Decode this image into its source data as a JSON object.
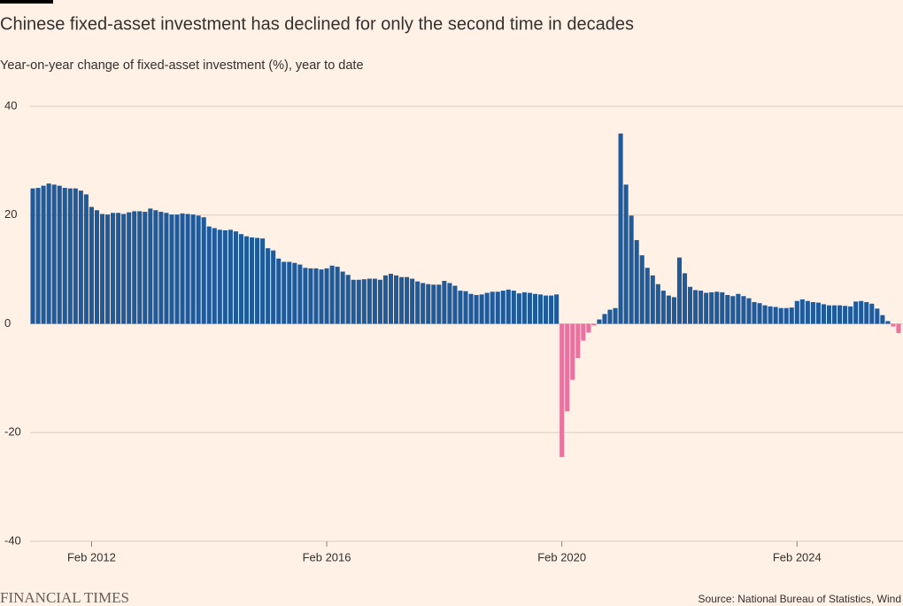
{
  "chart_data": {
    "type": "bar",
    "title": "Chinese fixed-asset investment has declined for only the second time in decades",
    "subtitle": "Year-on-year change of fixed-asset investment (%), year to date",
    "source": "Source: National Bureau of Statistics, Wind",
    "brand": "FINANCIAL TIMES",
    "categories": [
      null,
      null,
      null,
      null,
      null,
      null,
      null,
      null,
      null,
      null,
      null,
      "Feb 2012",
      null,
      null,
      null,
      null,
      null,
      null,
      null,
      null,
      null,
      null,
      null,
      null,
      null,
      null,
      null,
      null,
      null,
      null,
      null,
      null,
      null,
      null,
      null,
      null,
      null,
      null,
      null,
      null,
      null,
      null,
      null,
      null,
      null,
      null,
      null,
      null,
      null,
      null,
      null,
      null,
      null,
      null,
      null,
      "Feb 2016",
      null,
      null,
      null,
      null,
      null,
      null,
      null,
      null,
      null,
      null,
      null,
      null,
      null,
      null,
      null,
      null,
      null,
      null,
      null,
      null,
      null,
      null,
      null,
      null,
      null,
      null,
      null,
      null,
      null,
      null,
      null,
      null,
      null,
      null,
      null,
      null,
      null,
      null,
      null,
      null,
      null,
      null,
      null,
      "Feb 2020",
      null,
      null,
      null,
      null,
      null,
      null,
      null,
      null,
      null,
      null,
      null,
      null,
      null,
      null,
      null,
      null,
      null,
      null,
      null,
      null,
      null,
      null,
      null,
      null,
      null,
      null,
      null,
      null,
      null,
      null,
      null,
      null,
      null,
      null,
      null,
      null,
      null,
      null,
      null,
      null,
      null,
      null,
      null,
      "Feb 2024",
      null,
      null,
      null,
      null,
      null,
      null,
      null,
      null,
      null,
      null,
      null,
      null,
      null,
      null,
      null,
      null,
      null,
      null,
      null
    ],
    "values": [
      24.9,
      25.0,
      25.4,
      25.8,
      25.6,
      25.4,
      25.0,
      24.9,
      24.9,
      24.5,
      23.8,
      21.5,
      20.9,
      20.2,
      20.1,
      20.4,
      20.4,
      20.2,
      20.5,
      20.7,
      20.7,
      20.6,
      21.2,
      20.9,
      20.6,
      20.4,
      20.1,
      20.1,
      20.3,
      20.2,
      20.1,
      19.9,
      19.6,
      17.9,
      17.6,
      17.3,
      17.2,
      17.3,
      17.0,
      16.5,
      16.1,
      15.9,
      15.8,
      15.7,
      13.9,
      13.5,
      12.0,
      11.4,
      11.4,
      11.2,
      10.9,
      10.3,
      10.2,
      10.2,
      10.0,
      10.2,
      10.7,
      10.5,
      9.6,
      9.0,
      8.1,
      8.1,
      8.2,
      8.3,
      8.3,
      8.1,
      8.9,
      9.2,
      8.9,
      8.6,
      8.6,
      8.3,
      7.8,
      7.5,
      7.3,
      7.2,
      7.2,
      7.9,
      7.5,
      7.0,
      6.1,
      6.0,
      5.5,
      5.3,
      5.4,
      5.7,
      5.9,
      5.9,
      6.1,
      6.3,
      6.1,
      5.6,
      5.8,
      5.7,
      5.5,
      5.4,
      5.2,
      5.2,
      5.4,
      -24.5,
      -16.1,
      -10.3,
      -6.3,
      -3.1,
      -1.6,
      -0.3,
      0.8,
      1.8,
      2.6,
      2.9,
      35.0,
      25.6,
      19.9,
      15.4,
      12.6,
      10.3,
      8.9,
      7.3,
      6.1,
      5.2,
      4.9,
      12.2,
      9.3,
      6.8,
      6.2,
      6.1,
      5.7,
      5.8,
      5.9,
      5.8,
      5.3,
      5.1,
      5.5,
      5.1,
      4.7,
      4.0,
      3.8,
      3.4,
      3.2,
      3.1,
      2.9,
      2.9,
      3.0,
      4.2,
      4.5,
      4.2,
      4.0,
      3.9,
      3.6,
      3.4,
      3.4,
      3.4,
      3.3,
      3.2,
      4.1,
      4.2,
      4.0,
      3.7,
      2.8,
      1.6,
      0.5,
      -0.5,
      -1.7
    ],
    "colors": {
      "positive": "#1f5a9b",
      "negative": "#e9729f"
    },
    "ylim": [
      -40,
      40
    ],
    "yticks": [
      -40,
      -20,
      0,
      20,
      40
    ],
    "grid": true
  }
}
